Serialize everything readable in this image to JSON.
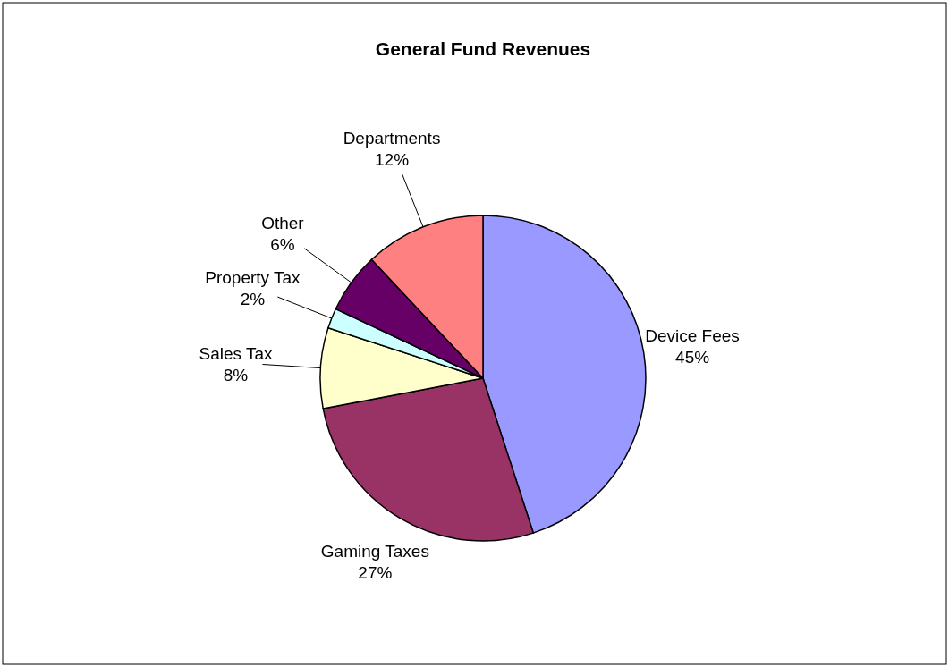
{
  "chart_data": {
    "type": "pie",
    "title": "General Fund Revenues",
    "categories": [
      "Device Fees",
      "Gaming Taxes",
      "Sales Tax",
      "Property Tax",
      "Other",
      "Departments"
    ],
    "values": [
      45,
      27,
      8,
      2,
      6,
      12
    ],
    "value_labels": [
      "45%",
      "27%",
      "8%",
      "2%",
      "6%",
      "12%"
    ],
    "colors": [
      "#9999ff",
      "#993366",
      "#ffffcc",
      "#ccffff",
      "#660066",
      "#ff8080"
    ]
  }
}
